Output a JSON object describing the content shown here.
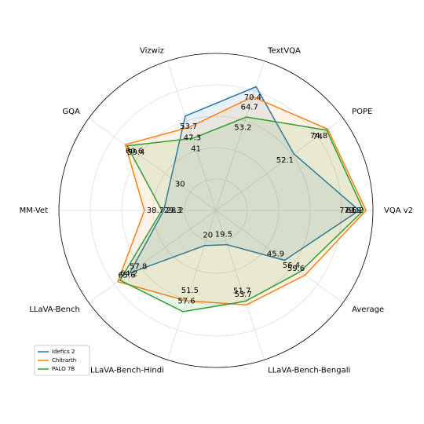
{
  "chart_data": {
    "type": "radar",
    "categories": [
      "VQA v2",
      "POPE",
      "TextVQA",
      "Vizwiz",
      "GQA",
      "MM-Vet",
      "LLaVA-Bench",
      "LLaVA-Bench-Hindi",
      "LLaVA-Bench-Bengali",
      "Average"
    ],
    "rlim": [
      0,
      85
    ],
    "grid": true,
    "legend": "lower left",
    "series": [
      {
        "name": "Idefics 2",
        "color": "#1f77b4",
        "values": [
          77.5,
          52.1,
          70.4,
          53.7,
          30.0,
          28.2,
          57.8,
          20.0,
          19.5,
          45.9
        ]
      },
      {
        "name": "Chitrarth",
        "color": "#ff7f0e",
        "values": [
          81.2,
          74.8,
          64.7,
          47.3,
          60.6,
          38.7,
          65.6,
          51.5,
          53.7,
          59.6
        ]
      },
      {
        "name": "PALO 7B",
        "color": "#2ca02c",
        "values": [
          79.9,
          74.0,
          53.2,
          41.0,
          59.4,
          29.3,
          64.2,
          57.6,
          51.7,
          56.4
        ]
      }
    ]
  }
}
